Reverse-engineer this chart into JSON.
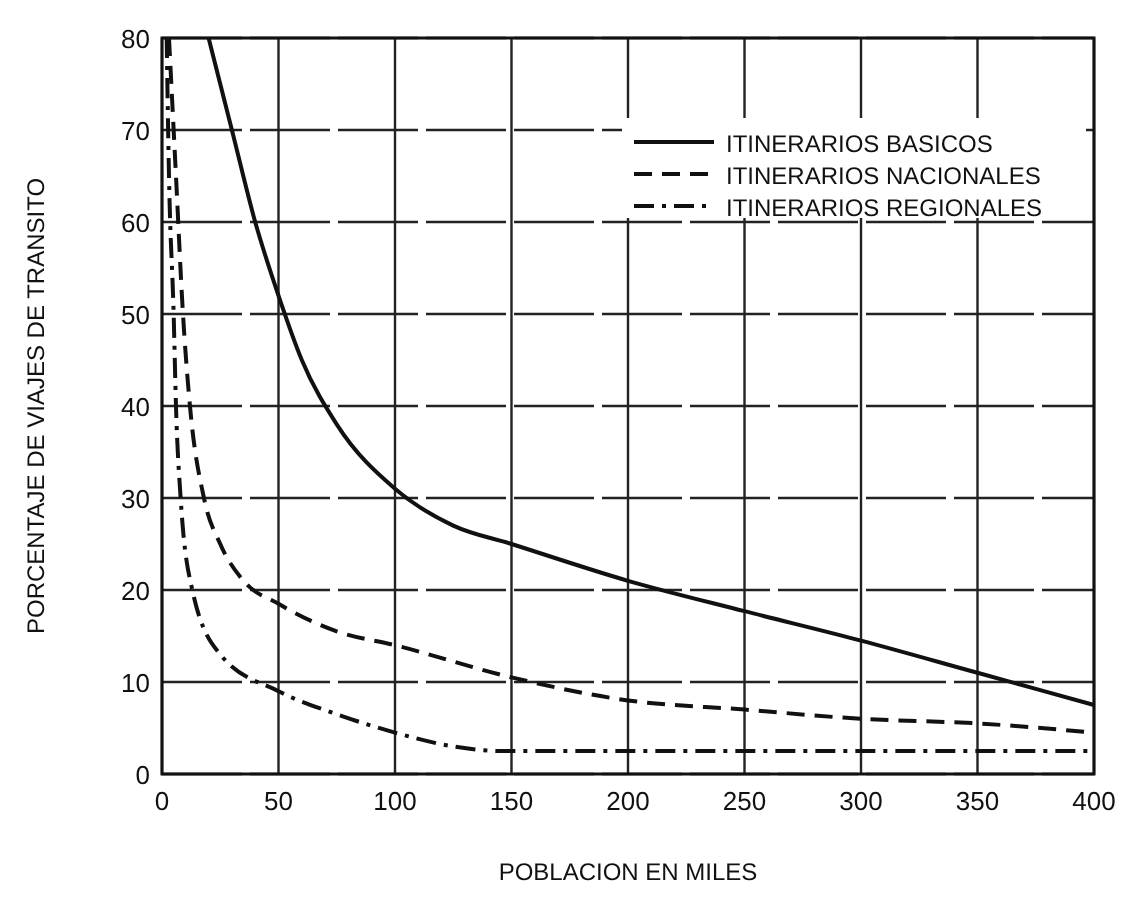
{
  "chart_data": {
    "type": "line",
    "xlabel": "POBLACION EN MILES",
    "ylabel": "PORCENTAJE DE VIAJES DE TRANSITO",
    "xlim": [
      0,
      400
    ],
    "ylim": [
      0,
      80
    ],
    "xticks": [
      0,
      50,
      100,
      150,
      200,
      250,
      300,
      350,
      400
    ],
    "yticks": [
      0,
      10,
      20,
      30,
      40,
      50,
      60,
      70,
      80
    ],
    "grid": true,
    "legend": "top right",
    "series": [
      {
        "name": "ITINERARIOS BASICOS",
        "color": "#111111",
        "line_style": "solid",
        "x": [
          20,
          30,
          40,
          50,
          60,
          75,
          100,
          125,
          150,
          200,
          250,
          300,
          350,
          400
        ],
        "values": [
          80,
          70,
          60,
          52,
          45,
          38,
          31,
          27,
          25,
          21,
          17.7,
          14.5,
          11,
          7.5
        ]
      },
      {
        "name": "ITINERARIOS NACIONALES",
        "color": "#111111",
        "line_style": "dashed",
        "x": [
          3,
          6,
          9,
          12,
          18,
          25,
          35,
          50,
          75,
          100,
          150,
          200,
          250,
          300,
          350,
          400
        ],
        "values": [
          80,
          65,
          50,
          40,
          30,
          25,
          21,
          18.5,
          15.5,
          14,
          10.5,
          8,
          7,
          6,
          5.5,
          4.5
        ]
      },
      {
        "name": "ITINERARIOS REGIONALES",
        "color": "#111111",
        "line_style": "dashdot",
        "x": [
          2,
          3,
          5,
          6,
          8,
          13,
          25,
          50,
          75,
          100,
          125,
          145,
          200,
          300,
          400
        ],
        "values": [
          80,
          65,
          50,
          40,
          30,
          20,
          13,
          9,
          6.5,
          4.5,
          3,
          2.5,
          2.5,
          2.5,
          2.5
        ]
      }
    ]
  }
}
